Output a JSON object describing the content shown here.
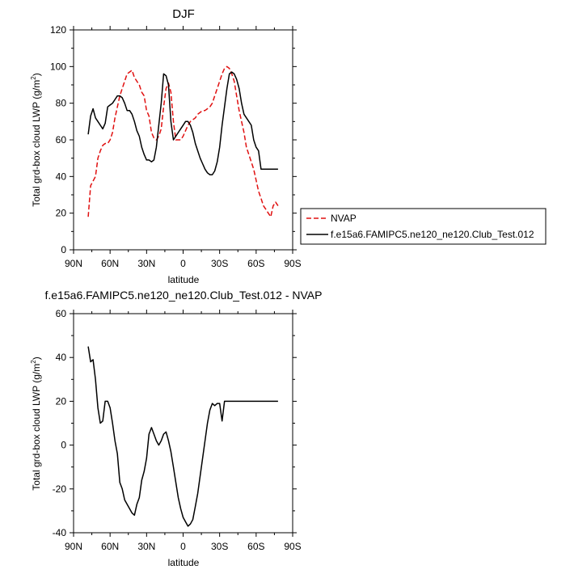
{
  "chart_data": [
    {
      "type": "line",
      "title": "DJF",
      "xlabel": "latitude",
      "ylabel": "Total grd-box cloud LWP (g/m",
      "ylabel_sup": "2",
      "ylabel_close": ")",
      "xlim": [
        90,
        -90
      ],
      "ylim": [
        0,
        120
      ],
      "xticks": [
        {
          "value": 90,
          "label": "90N"
        },
        {
          "value": 60,
          "label": "60N"
        },
        {
          "value": 30,
          "label": "30N"
        },
        {
          "value": 0,
          "label": "0"
        },
        {
          "value": -30,
          "label": "30S"
        },
        {
          "value": -60,
          "label": "60S"
        },
        {
          "value": -90,
          "label": "90S"
        }
      ],
      "yticks": [
        0,
        20,
        40,
        60,
        80,
        100,
        120
      ],
      "grid": false,
      "legend_position": "right",
      "series": [
        {
          "name": "NVAP",
          "color": "#e01010",
          "style": "dashed",
          "x": [
            78,
            76,
            72,
            70,
            68,
            66,
            64,
            62,
            60,
            58,
            56,
            54,
            52,
            50,
            48,
            46,
            44,
            42,
            40,
            38,
            36,
            34,
            32,
            30,
            28,
            26,
            24,
            22,
            20,
            18,
            16,
            14,
            12,
            10,
            8,
            6,
            4,
            2,
            0,
            -2,
            -4,
            -6,
            -8,
            -10,
            -12,
            -14,
            -16,
            -18,
            -20,
            -22,
            -24,
            -26,
            -28,
            -30,
            -32,
            -34,
            -36,
            -38,
            -40,
            -42,
            -44,
            -46,
            -48,
            -50,
            -52,
            -54,
            -56,
            -58,
            -60,
            -62,
            -64,
            -66,
            -68,
            -70,
            -72,
            -74,
            -76,
            -78
          ],
          "y": [
            18,
            35,
            40,
            50,
            54,
            57,
            58,
            58,
            60,
            64,
            72,
            78,
            84,
            88,
            92,
            96,
            97,
            98,
            94,
            92,
            90,
            86,
            84,
            76,
            73,
            64,
            61,
            60,
            62,
            66,
            78,
            88,
            91,
            86,
            70,
            60,
            60,
            60,
            62,
            65,
            68,
            70,
            71,
            72,
            74,
            75,
            76,
            76,
            77,
            78,
            80,
            84,
            88,
            92,
            96,
            99,
            100,
            99,
            96,
            92,
            84,
            76,
            70,
            64,
            56,
            52,
            48,
            44,
            38,
            32,
            28,
            24,
            22,
            20,
            18,
            24,
            26,
            24
          ],
          "x_used": true
        },
        {
          "name": "f.e15a6.FAMIPC5.ne120_ne120.Club_Test.012",
          "color": "#000000",
          "style": "solid",
          "x": [
            78,
            76,
            74,
            72,
            70,
            68,
            66,
            64,
            62,
            60,
            58,
            56,
            54,
            52,
            50,
            48,
            46,
            44,
            42,
            40,
            38,
            36,
            34,
            32,
            30,
            28,
            26,
            24,
            22,
            20,
            18,
            16,
            14,
            12,
            10,
            8,
            6,
            4,
            2,
            0,
            -2,
            -4,
            -6,
            -8,
            -10,
            -12,
            -14,
            -16,
            -18,
            -20,
            -22,
            -24,
            -26,
            -28,
            -30,
            -32,
            -34,
            -36,
            -38,
            -40,
            -42,
            -44,
            -46,
            -48,
            -50,
            -52,
            -54,
            -56,
            -58,
            -60,
            -62,
            -64,
            -66,
            -68,
            -70,
            -72,
            -74,
            -76,
            -78
          ],
          "y": [
            63,
            73,
            77,
            72,
            70,
            68,
            66,
            69,
            78,
            79,
            80,
            82,
            84,
            84,
            83,
            80,
            76,
            76,
            74,
            70,
            65,
            62,
            56,
            52,
            49,
            49,
            48,
            49,
            56,
            68,
            80,
            96,
            95,
            90,
            70,
            60,
            62,
            64,
            66,
            68,
            70,
            70,
            68,
            64,
            58,
            54,
            50,
            47,
            44,
            42,
            41,
            41,
            43,
            48,
            56,
            68,
            78,
            88,
            96,
            97,
            96,
            93,
            88,
            80,
            74,
            72,
            70,
            68,
            60,
            56,
            54,
            44,
            44,
            44,
            44,
            44,
            44,
            44,
            44
          ],
          "x_used": true
        }
      ]
    },
    {
      "type": "line",
      "title": "f.e15a6.FAMIPC5.ne120_ne120.Club_Test.012 - NVAP",
      "xlabel": "latitude",
      "ylabel": "Total grd-box cloud LWP (g/m",
      "ylabel_sup": "2",
      "ylabel_close": ")",
      "xlim": [
        90,
        -90
      ],
      "ylim": [
        -40,
        60
      ],
      "xticks": [
        {
          "value": 90,
          "label": "90N"
        },
        {
          "value": 60,
          "label": "60N"
        },
        {
          "value": 30,
          "label": "30N"
        },
        {
          "value": 0,
          "label": "0"
        },
        {
          "value": -30,
          "label": "30S"
        },
        {
          "value": -60,
          "label": "60S"
        },
        {
          "value": -90,
          "label": "90S"
        }
      ],
      "yticks": [
        -40,
        -20,
        0,
        20,
        40,
        60
      ],
      "grid": false,
      "series": [
        {
          "color": "#000000",
          "style": "solid",
          "x": [
            78,
            76,
            74,
            72,
            70,
            68,
            66,
            64,
            62,
            60,
            58,
            56,
            54,
            52,
            50,
            48,
            46,
            44,
            42,
            40,
            38,
            36,
            34,
            32,
            30,
            28,
            26,
            24,
            22,
            20,
            18,
            16,
            14,
            12,
            10,
            8,
            6,
            4,
            2,
            0,
            -2,
            -4,
            -6,
            -8,
            -10,
            -12,
            -14,
            -16,
            -18,
            -20,
            -22,
            -24,
            -26,
            -28,
            -30,
            -32,
            -34,
            -36,
            -38,
            -40,
            -42,
            -44,
            -46,
            -48,
            -50,
            -52,
            -54,
            -56,
            -58,
            -60,
            -62,
            -64,
            -66,
            -68,
            -70,
            -72,
            -74,
            -76,
            -78
          ],
          "y": [
            45,
            38,
            39,
            30,
            17,
            10,
            11,
            20,
            20,
            17,
            10,
            2,
            -4,
            -17,
            -20,
            -25,
            -27,
            -29,
            -31,
            -32,
            -27,
            -24,
            -16,
            -12,
            -6,
            5,
            8,
            5,
            2,
            0,
            2,
            5,
            6,
            2,
            -3,
            -10,
            -17,
            -24,
            -29,
            -33,
            -35,
            -37,
            -36,
            -34,
            -28,
            -22,
            -14,
            -6,
            2,
            10,
            16,
            19,
            18,
            19,
            19,
            11,
            20,
            20,
            20,
            20,
            20,
            20,
            20,
            20,
            20,
            20,
            20,
            20,
            20,
            20,
            20,
            20,
            20,
            20,
            20,
            20,
            20,
            20,
            20
          ]
        }
      ]
    }
  ]
}
